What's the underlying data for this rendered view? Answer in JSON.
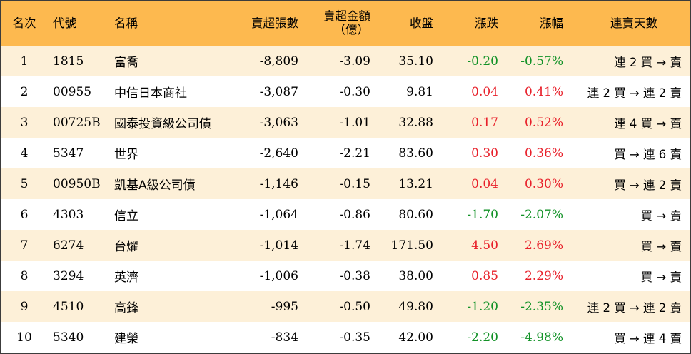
{
  "headers": {
    "rank": "名次",
    "code": "代號",
    "name": "名稱",
    "net_sell_volume": "賣超張數",
    "net_sell_amount_line1": "賣超金額",
    "net_sell_amount_line2": "（億）",
    "close": "收盤",
    "change": "漲跌",
    "change_pct": "漲幅",
    "streak": "連賣天數"
  },
  "colors": {
    "header_bg": "#fdb94f",
    "odd_row_bg": "#fdf0d8",
    "up": "#e8202a",
    "down": "#129227"
  },
  "rows": [
    {
      "rank": "1",
      "code": "1815",
      "name": "富喬",
      "volume": "-8,809",
      "amount": "-3.09",
      "close": "35.10",
      "change": "-0.20",
      "pct": "-0.57%",
      "dir": "down",
      "streak": "連 2 買 → 賣"
    },
    {
      "rank": "2",
      "code": "00955",
      "name": "中信日本商社",
      "volume": "-3,087",
      "amount": "-0.30",
      "close": "9.81",
      "change": "0.04",
      "pct": "0.41%",
      "dir": "up",
      "streak": "連 2 買 → 連 2 賣"
    },
    {
      "rank": "3",
      "code": "00725B",
      "name": "國泰投資級公司債",
      "volume": "-3,063",
      "amount": "-1.01",
      "close": "32.88",
      "change": "0.17",
      "pct": "0.52%",
      "dir": "up",
      "streak": "連 4 買 → 賣"
    },
    {
      "rank": "4",
      "code": "5347",
      "name": "世界",
      "volume": "-2,640",
      "amount": "-2.21",
      "close": "83.60",
      "change": "0.30",
      "pct": "0.36%",
      "dir": "up",
      "streak": "買 → 連 6 賣"
    },
    {
      "rank": "5",
      "code": "00950B",
      "name": "凱基A級公司債",
      "volume": "-1,146",
      "amount": "-0.15",
      "close": "13.21",
      "change": "0.04",
      "pct": "0.30%",
      "dir": "up",
      "streak": "買 → 連 2 賣"
    },
    {
      "rank": "6",
      "code": "4303",
      "name": "信立",
      "volume": "-1,064",
      "amount": "-0.86",
      "close": "80.60",
      "change": "-1.70",
      "pct": "-2.07%",
      "dir": "down",
      "streak": "買 → 賣"
    },
    {
      "rank": "7",
      "code": "6274",
      "name": "台燿",
      "volume": "-1,014",
      "amount": "-1.74",
      "close": "171.50",
      "change": "4.50",
      "pct": "2.69%",
      "dir": "up",
      "streak": "買 → 賣"
    },
    {
      "rank": "8",
      "code": "3294",
      "name": "英濟",
      "volume": "-1,006",
      "amount": "-0.38",
      "close": "38.00",
      "change": "0.85",
      "pct": "2.29%",
      "dir": "up",
      "streak": "買 → 賣"
    },
    {
      "rank": "9",
      "code": "4510",
      "name": "高鋒",
      "volume": "-995",
      "amount": "-0.50",
      "close": "49.80",
      "change": "-1.20",
      "pct": "-2.35%",
      "dir": "down",
      "streak": "連 2 買 → 連 2 賣"
    },
    {
      "rank": "10",
      "code": "5340",
      "name": "建榮",
      "volume": "-834",
      "amount": "-0.35",
      "close": "42.00",
      "change": "-2.20",
      "pct": "-4.98%",
      "dir": "down",
      "streak": "買 → 連 4 賣"
    }
  ]
}
